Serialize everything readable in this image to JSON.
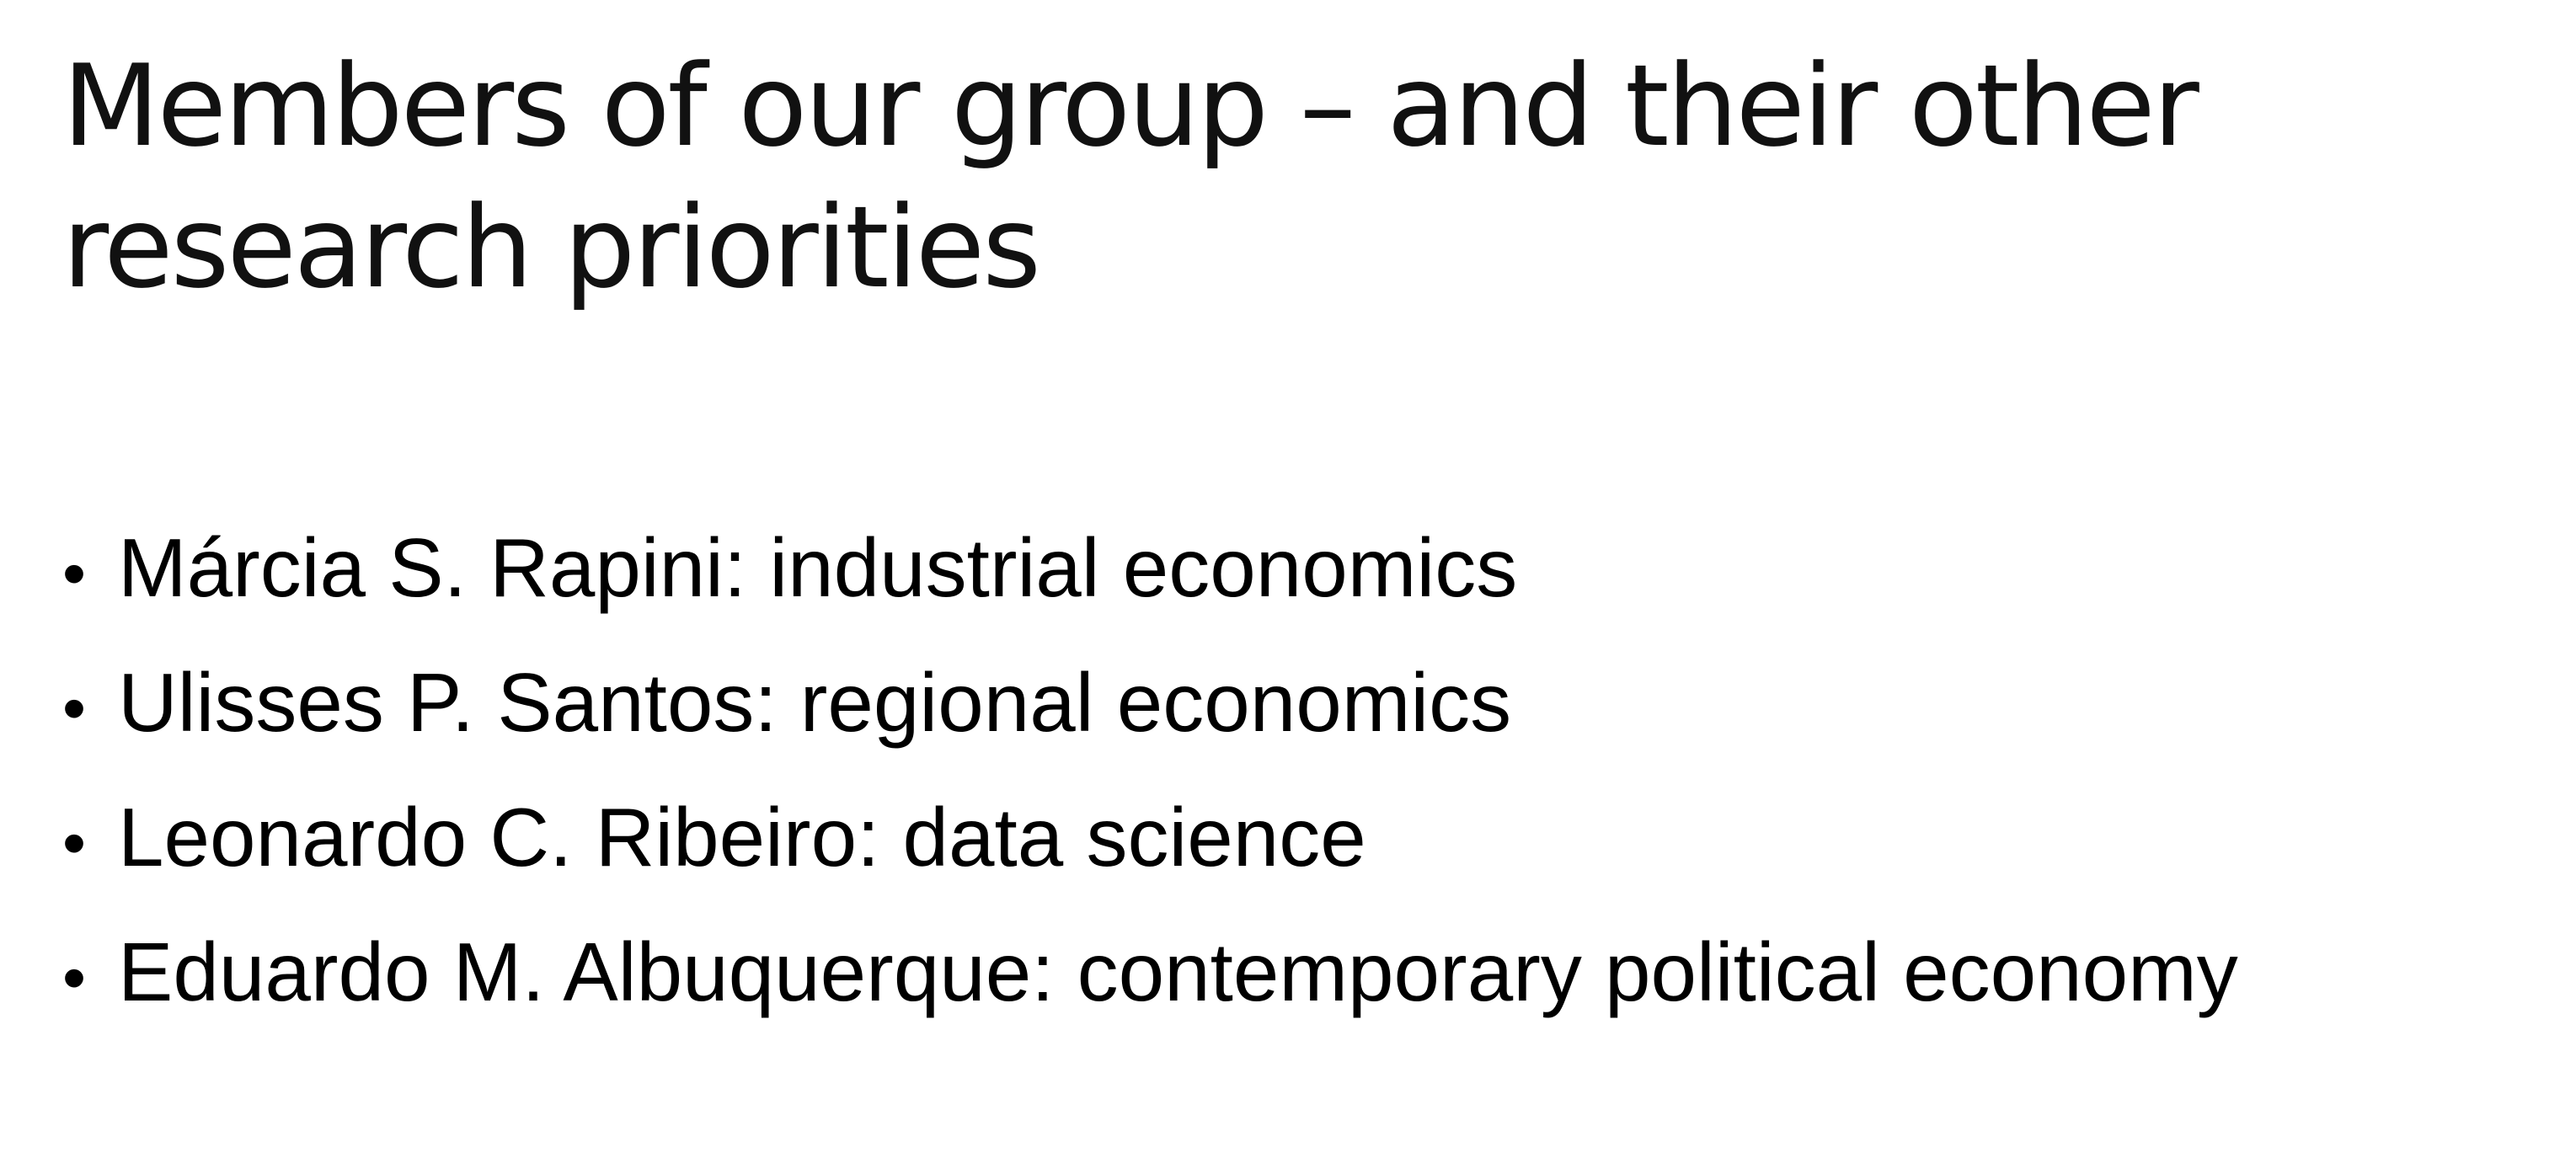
{
  "slide": {
    "title_lines": [
      "Members of our group – and their other",
      "research priorities"
    ],
    "bullet_symbol": "•",
    "bullets": [
      "Márcia S. Rapini: industrial economics",
      "Ulisses P. Santos: regional economics",
      "Leonardo C. Ribeiro: data science",
      "Eduardo M. Albuquerque: contemporary political economy"
    ]
  }
}
